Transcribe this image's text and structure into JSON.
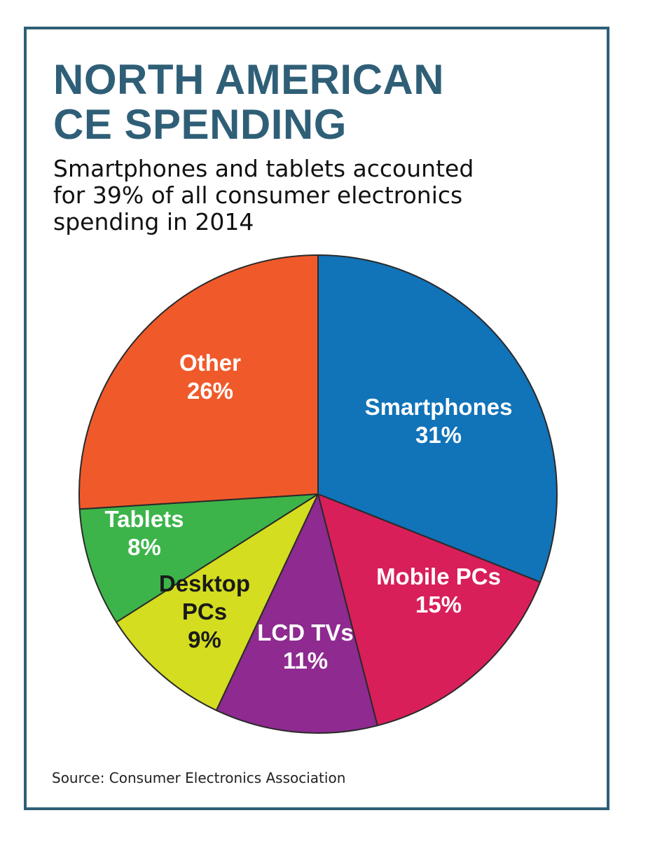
{
  "title": {
    "line1": "NORTH AMERICAN",
    "line2": "CE SPENDING"
  },
  "subtitle": {
    "line1": "Smartphones and tablets accounted",
    "line2": "for 39% of all consumer electronics",
    "line3": "spending in 2014"
  },
  "source": "Source: Consumer Electronics Association",
  "colors": {
    "frame": "#2f5f77",
    "title": "#2f5f77",
    "slice_border": "#2a2a2a"
  },
  "chart_data": {
    "type": "pie",
    "title": "NORTH AMERICAN CE SPENDING",
    "subtitle": "Smartphones and tablets accounted for 39% of all consumer electronics spending in 2014",
    "unit": "%",
    "slices": [
      {
        "name": "Smartphones",
        "value": 31,
        "label_lines": [
          "Smartphones",
          "31%"
        ],
        "color": "#1173b8",
        "text_color": "#ffffff"
      },
      {
        "name": "Mobile PCs",
        "value": 15,
        "label_lines": [
          "Mobile PCs",
          "15%"
        ],
        "color": "#d81f5a",
        "text_color": "#ffffff"
      },
      {
        "name": "LCD TVs",
        "value": 11,
        "label_lines": [
          "LCD TVs",
          "11%"
        ],
        "color": "#8e2a90",
        "text_color": "#ffffff"
      },
      {
        "name": "Desktop PCs",
        "value": 9,
        "label_lines": [
          "Desktop",
          "PCs",
          "9%"
        ],
        "color": "#d4dd1f",
        "text_color": "#1a1a1a"
      },
      {
        "name": "Tablets",
        "value": 8,
        "label_lines": [
          "Tablets",
          "8%"
        ],
        "color": "#3cb44a",
        "text_color": "#ffffff"
      },
      {
        "name": "Other",
        "value": 26,
        "label_lines": [
          "Other",
          "26%"
        ],
        "color": "#f05a2b",
        "text_color": "#ffffff"
      }
    ],
    "start": "12 o'clock",
    "direction": "clockwise",
    "legend": "none (labels inside slices)"
  }
}
